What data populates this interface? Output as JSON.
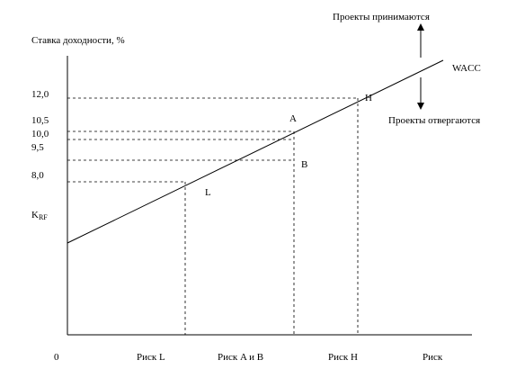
{
  "axis": {
    "y_title": "Ставка доходности, %",
    "y_labels": [
      "12,0",
      "10,5",
      "10,0",
      "9,5",
      "8,0"
    ],
    "krf": {
      "main": "K",
      "sub": "RF"
    },
    "origin": "0",
    "x_labels": [
      "Риск L",
      "Риск A и B",
      "Риск H",
      "Риск"
    ]
  },
  "line_label": "WACC",
  "points": [
    "H",
    "A",
    "B",
    "L"
  ],
  "notes": {
    "accepted": "Проекты принимаются",
    "rejected": "Проекты отвергаются"
  }
}
